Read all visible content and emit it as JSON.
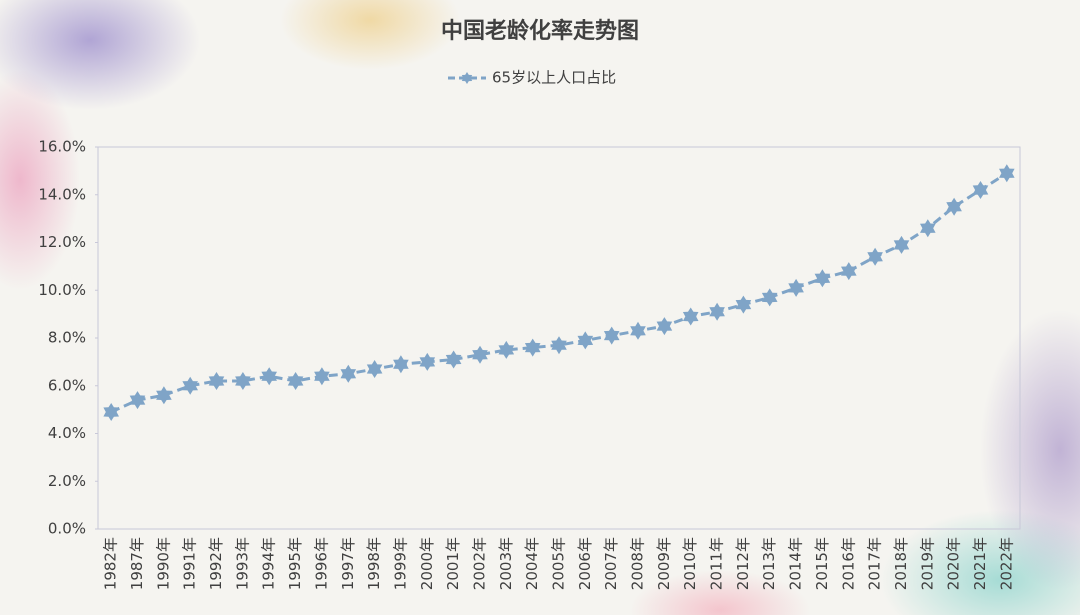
{
  "chart_data": {
    "type": "line",
    "title": "中国老龄化率走势图",
    "categories": [
      "1982年",
      "1987年",
      "1990年",
      "1991年",
      "1992年",
      "1993年",
      "1994年",
      "1995年",
      "1996年",
      "1997年",
      "1998年",
      "1999年",
      "2000年",
      "2001年",
      "2002年",
      "2003年",
      "2004年",
      "2005年",
      "2006年",
      "2007年",
      "2008年",
      "2009年",
      "2010年",
      "2011年",
      "2012年",
      "2013年",
      "2014年",
      "2015年",
      "2016年",
      "2017年",
      "2018年",
      "2019年",
      "2020年",
      "2021年",
      "2022年"
    ],
    "series": [
      {
        "name": "65岁以上人口占比",
        "color": "#7fa4c7",
        "values": [
          4.9,
          5.4,
          5.6,
          6.0,
          6.2,
          6.2,
          6.4,
          6.2,
          6.4,
          6.5,
          6.7,
          6.9,
          7.0,
          7.1,
          7.3,
          7.5,
          7.6,
          7.7,
          7.9,
          8.1,
          8.3,
          8.5,
          8.9,
          9.1,
          9.4,
          9.7,
          10.1,
          10.5,
          10.8,
          11.4,
          11.9,
          12.6,
          13.5,
          14.2,
          14.9
        ]
      }
    ],
    "ylim": [
      0,
      16
    ],
    "yticks": [
      {
        "value": 0,
        "label": "0.0%"
      },
      {
        "value": 2,
        "label": "2.0%"
      },
      {
        "value": 4,
        "label": "4.0%"
      },
      {
        "value": 6,
        "label": "6.0%"
      },
      {
        "value": 8,
        "label": "8.0%"
      },
      {
        "value": 10,
        "label": "10.0%"
      },
      {
        "value": 12,
        "label": "12.0%"
      },
      {
        "value": 14,
        "label": "14.0%"
      },
      {
        "value": 16,
        "label": "16.0%"
      }
    ],
    "legend": "top"
  }
}
